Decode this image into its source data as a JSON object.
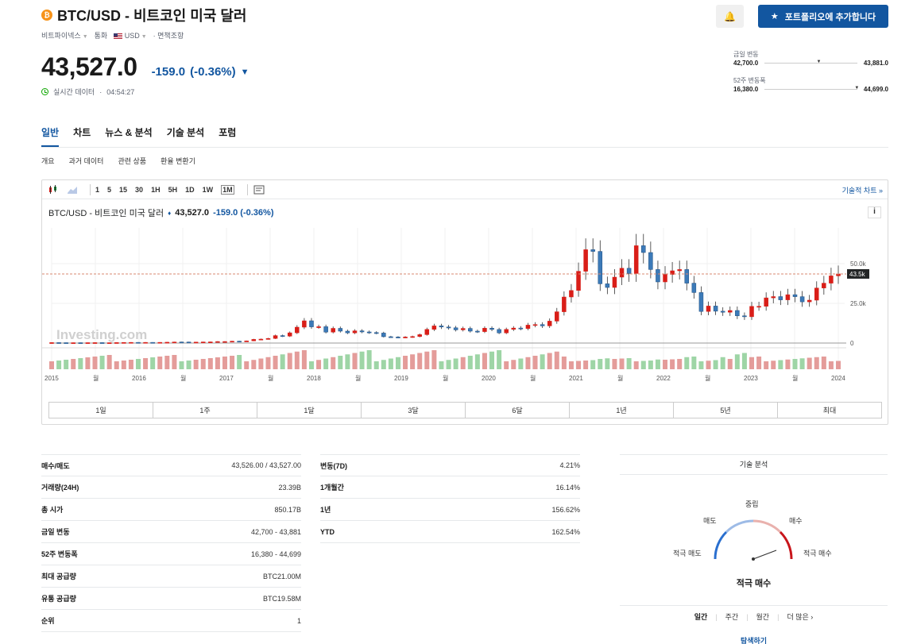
{
  "header": {
    "coin_symbol": "₿",
    "title": "BTC/USD - 비트코인 미국 달러",
    "exchange": "비트파이넥스",
    "currency_label": "통화",
    "currency": "USD",
    "disclaimer": "면책조항",
    "price": "43,527.0",
    "change": "-159.0",
    "change_pct": "(-0.36%)",
    "realtime_label": "실시간 데이터",
    "time": "04:54:27",
    "portfolio_button": "포트폴리오에 추가합니다"
  },
  "ranges": {
    "day": {
      "label": "금일 변동",
      "low": "42,700.0",
      "high": "43,881.0",
      "position": 0.56
    },
    "week52": {
      "label": "52주 변동폭",
      "low": "16,380.0",
      "high": "44,699.0",
      "position": 0.97
    }
  },
  "tabs": [
    "일반",
    "차트",
    "뉴스 & 분석",
    "기술 분석",
    "포럼"
  ],
  "subtabs": [
    "개요",
    "과거 데이터",
    "관련 상품",
    "환율 변환기"
  ],
  "chart": {
    "intervals": [
      "1",
      "5",
      "15",
      "30",
      "1H",
      "5H",
      "1D",
      "1W",
      "1M"
    ],
    "selected_interval": "1M",
    "tech_chart_link": "기술적 차트",
    "legend_name": "BTC/USD - 비트코인 미국 달러",
    "legend_price": "43,527.0",
    "legend_change": "-159.0 (-0.36%)",
    "info": "i",
    "watermark": "Investing.com",
    "periods": [
      "1일",
      "1주",
      "1달",
      "3달",
      "6달",
      "1년",
      "5년",
      "최대"
    ]
  },
  "chart_data": {
    "type": "candlestick",
    "x_labels": [
      "2015",
      "월",
      "2016",
      "월",
      "2017",
      "월",
      "2018",
      "월",
      "2019",
      "월",
      "2020",
      "월",
      "2021",
      "월",
      "2022",
      "월",
      "2023",
      "월",
      "2024"
    ],
    "y_ticks": [
      "50.0k",
      "25.0k",
      "0"
    ],
    "last_price_label": "43.5k",
    "ylim": [
      0,
      70000
    ],
    "up_color": "#d91e18",
    "down_color": "#3c7ab8",
    "closes": [
      300,
      250,
      240,
      240,
      230,
      260,
      285,
      230,
      235,
      315,
      380,
      430,
      365,
      435,
      410,
      445,
      535,
      675,
      655,
      575,
      610,
      700,
      740,
      965,
      970,
      1190,
      1080,
      1350,
      2300,
      2480,
      2880,
      4700,
      4340,
      6450,
      10000,
      14000,
      10200,
      10300,
      6900,
      9250,
      7500,
      6400,
      7700,
      7000,
      6600,
      6300,
      4000,
      3800,
      3450,
      3800,
      4100,
      5300,
      8600,
      10800,
      10100,
      9600,
      8300,
      9200,
      7500,
      7200,
      9350,
      8550,
      6400,
      8600,
      9450,
      9150,
      11300,
      11650,
      10800,
      13800,
      19700,
      29000,
      33100,
      45200,
      58800,
      57700,
      37300,
      35000,
      41500,
      47100,
      43800,
      61300,
      57000,
      46300,
      38500,
      43200,
      45500,
      46300,
      37700,
      31800,
      19900,
      23300,
      20050,
      19400,
      20500,
      17150,
      16550,
      23100,
      23150,
      28450,
      29250,
      27200,
      30450,
      29200,
      25950,
      27000,
      34650,
      37700,
      42300,
      43527
    ]
  },
  "stats_left": [
    {
      "k": "매수/매도",
      "v": "43,526.00 / 43,527.00"
    },
    {
      "k": "거래량(24H)",
      "v": "23.39B"
    },
    {
      "k": "총 시가",
      "v": "850.17B"
    },
    {
      "k": "금일 변동",
      "v": "42,700 - 43,881"
    },
    {
      "k": "52주 변동폭",
      "v": "16,380 - 44,699"
    },
    {
      "k": "최대 공급량",
      "v": "BTC21.00M"
    },
    {
      "k": "유통 공급량",
      "v": "BTC19.58M"
    },
    {
      "k": "순위",
      "v": "1"
    }
  ],
  "stats_mid": [
    {
      "k": "변동(7D)",
      "v": "4.21%"
    },
    {
      "k": "1개월간",
      "v": "16.14%"
    },
    {
      "k": "1년",
      "v": "156.62%"
    },
    {
      "k": "YTD",
      "v": "162.54%"
    }
  ],
  "technical": {
    "title": "기술 분석",
    "labels": {
      "neutral": "중립",
      "sell": "매도",
      "buy": "매수",
      "strong_sell": "적극 매도",
      "strong_buy": "적극 매수"
    },
    "result": "적극 매수",
    "timeframes": [
      "일간",
      "주간",
      "월간",
      "더 많은"
    ],
    "explore": "탐색하기"
  },
  "colors": {
    "accent": "#1256a0",
    "up": "#d91e18",
    "down": "#3c7ab8"
  }
}
